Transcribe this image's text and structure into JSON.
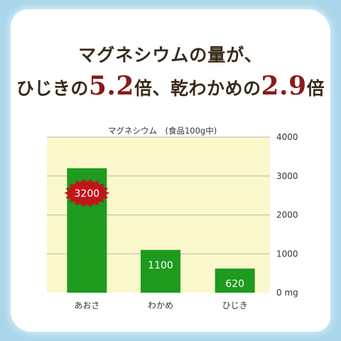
{
  "headline": {
    "line1": "マグネシウムの量が、",
    "line2_a": "ひじきの",
    "line2_b": "5.2",
    "line2_c": "倍、乾わかめの",
    "line2_d": "2.9",
    "line2_e": "倍"
  },
  "chart_data": {
    "type": "bar",
    "title": "マグネシウム　(食品100g中)",
    "categories": [
      "あおさ",
      "わかめ",
      "ひじき"
    ],
    "values": [
      3200,
      1100,
      620
    ],
    "value_labels": [
      "3200",
      "1100",
      "620"
    ],
    "ylim": [
      0,
      4000
    ],
    "yticks": [
      {
        "value": 0,
        "label": "0 mg"
      },
      {
        "value": 1000,
        "label": "1000"
      },
      {
        "value": 2000,
        "label": "2000"
      },
      {
        "value": 3000,
        "label": "3000"
      },
      {
        "value": 4000,
        "label": "4000"
      }
    ],
    "grid": true,
    "highlight_index": 0,
    "colors": {
      "bar": "#1e9a1e",
      "plot_bg": "#fbf8cc",
      "grid": "#b9b6a0",
      "badge": "#c0161a"
    }
  }
}
